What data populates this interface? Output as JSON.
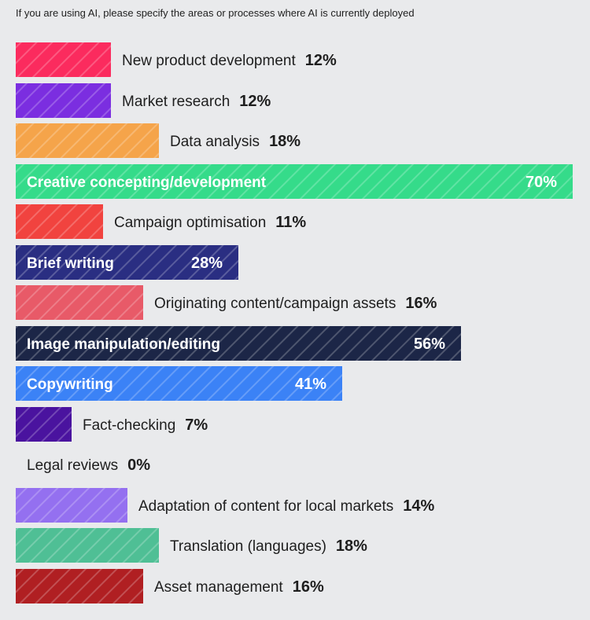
{
  "subtitle": "If you are using AI, please specify the areas or processes where AI is currently deployed",
  "chart_data": {
    "type": "bar",
    "orientation": "horizontal",
    "title": "If you are using AI, please specify the areas or processes where AI is currently deployed",
    "categories": [
      "New product development",
      "Market research",
      "Data analysis",
      "Creative concepting/development",
      "Campaign optimisation",
      "Brief writing",
      "Originating content/campaign assets",
      "Image manipulation/editing",
      "Copywriting",
      "Fact-checking",
      "Legal reviews",
      "Adaptation of content for local markets",
      "Translation (languages)",
      "Asset management"
    ],
    "values": [
      12,
      12,
      18,
      70,
      11,
      28,
      16,
      56,
      41,
      7,
      0,
      14,
      18,
      16
    ],
    "value_labels": [
      "12%",
      "12%",
      "18%",
      "70%",
      "11%",
      "28%",
      "16%",
      "56%",
      "41%",
      "7%",
      "0%",
      "14%",
      "18%",
      "16%"
    ],
    "colors": [
      "#fb2b5e",
      "#7b2ee0",
      "#f5a44a",
      "#35db8a",
      "#f1433f",
      "#2a2e82",
      "#e85a68",
      "#1c2647",
      "#3b82f6",
      "#4a139f",
      "#ffffff",
      "#9470f0",
      "#4fbf95",
      "#b01f22"
    ],
    "label_inside": [
      false,
      false,
      false,
      true,
      false,
      true,
      false,
      true,
      true,
      false,
      false,
      false,
      false,
      false
    ],
    "xlim": [
      0,
      70
    ],
    "grid": false,
    "legend": "none"
  }
}
